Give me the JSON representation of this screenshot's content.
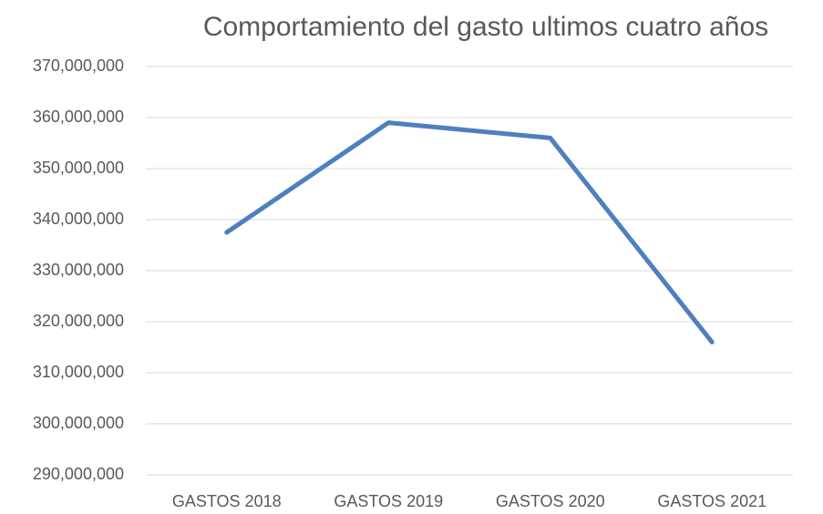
{
  "chart_data": {
    "type": "line",
    "title": "Comportamiento del gasto ultimos cuatro años",
    "categories": [
      "GASTOS 2018",
      "GASTOS 2019",
      "GASTOS 2020",
      "GASTOS 2021"
    ],
    "series": [
      {
        "color": "#4e7fbf",
        "values": [
          337500000,
          359000000,
          356000000,
          316000000
        ]
      }
    ],
    "ylim": [
      290000000,
      370000000
    ],
    "yticks": [
      {
        "value": 290000000,
        "label": "290,000,000"
      },
      {
        "value": 300000000,
        "label": "300,000,000"
      },
      {
        "value": 310000000,
        "label": "310,000,000"
      },
      {
        "value": 320000000,
        "label": "320,000,000"
      },
      {
        "value": 330000000,
        "label": "330,000,000"
      },
      {
        "value": 340000000,
        "label": "340,000,000"
      },
      {
        "value": 350000000,
        "label": "350,000,000"
      },
      {
        "value": 360000000,
        "label": "360,000,000"
      },
      {
        "value": 370000000,
        "label": "370,000,000"
      }
    ],
    "grid": true
  }
}
